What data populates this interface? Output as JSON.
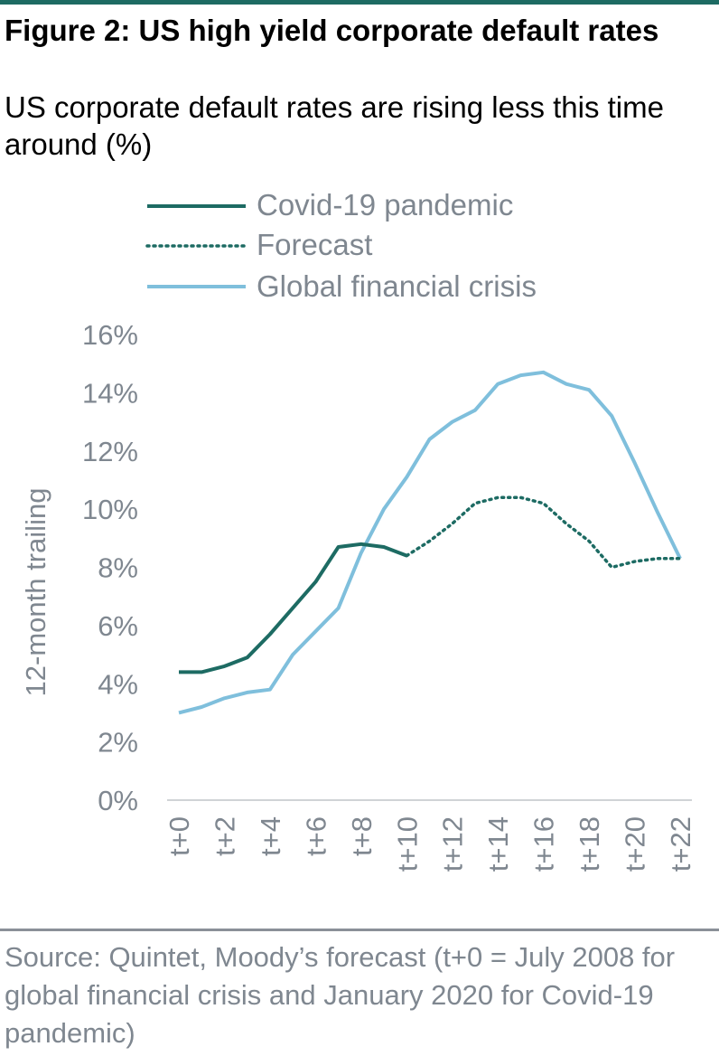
{
  "title": "Figure 2: US high yield corporate default rates",
  "subtitle": "US corporate default rates are rising less this time around (%)",
  "source": "Source: Quintet, Moody’s forecast (t+0 = July 2008 for global financial crisis and January 2020 for Covid-19 pandemic)",
  "colors": {
    "covid": "#1d6b63",
    "forecast": "#1d6b63",
    "gfc": "#7fbfdc",
    "axis_text": "#7f8790",
    "axis_line": "#d0d3d6"
  },
  "chart_data": {
    "type": "line",
    "ylabel": "12-month trailing",
    "xlabel": "",
    "ylim": [
      0,
      16
    ],
    "yticks": [
      0,
      2,
      4,
      6,
      8,
      10,
      12,
      14,
      16
    ],
    "ytick_labels": [
      "0%",
      "2%",
      "4%",
      "6%",
      "8%",
      "10%",
      "12%",
      "14%",
      "16%"
    ],
    "x": [
      0,
      1,
      2,
      3,
      4,
      5,
      6,
      7,
      8,
      9,
      10,
      11,
      12,
      13,
      14,
      15,
      16,
      17,
      18,
      19,
      20,
      21,
      22
    ],
    "xtick_labels": [
      "t+0",
      "t+2",
      "t+4",
      "t+6",
      "t+8",
      "t+10",
      "t+12",
      "t+14",
      "t+16",
      "t+18",
      "t+20",
      "t+22"
    ],
    "xtick_positions": [
      0,
      2,
      4,
      6,
      8,
      10,
      12,
      14,
      16,
      18,
      20,
      22
    ],
    "legend_position": "top",
    "grid": false,
    "series": [
      {
        "name": "Covid-19 pandemic",
        "key": "covid",
        "style": "solid",
        "x": [
          0,
          1,
          2,
          3,
          4,
          5,
          6,
          7,
          8,
          9,
          10
        ],
        "values": [
          4.4,
          4.4,
          4.6,
          4.9,
          5.7,
          6.6,
          7.5,
          8.7,
          8.8,
          8.7,
          8.4
        ]
      },
      {
        "name": "Forecast",
        "key": "forecast",
        "style": "dotted",
        "x": [
          10,
          11,
          12,
          13,
          14,
          15,
          16,
          17,
          18,
          19,
          20,
          21,
          22
        ],
        "values": [
          8.4,
          8.9,
          9.5,
          10.2,
          10.4,
          10.4,
          10.2,
          9.5,
          8.9,
          8.0,
          8.2,
          8.3,
          8.3
        ]
      },
      {
        "name": "Global financial crisis",
        "key": "gfc",
        "style": "solid",
        "x": [
          0,
          1,
          2,
          3,
          4,
          5,
          6,
          7,
          8,
          9,
          10,
          11,
          12,
          13,
          14,
          15,
          16,
          17,
          18,
          19,
          20,
          21,
          22
        ],
        "values": [
          3.0,
          3.2,
          3.5,
          3.7,
          3.8,
          5.0,
          5.8,
          6.6,
          8.5,
          10.0,
          11.1,
          12.4,
          13.0,
          13.4,
          14.3,
          14.6,
          14.7,
          14.3,
          14.1,
          13.2,
          11.6,
          9.9,
          8.3
        ]
      }
    ]
  }
}
